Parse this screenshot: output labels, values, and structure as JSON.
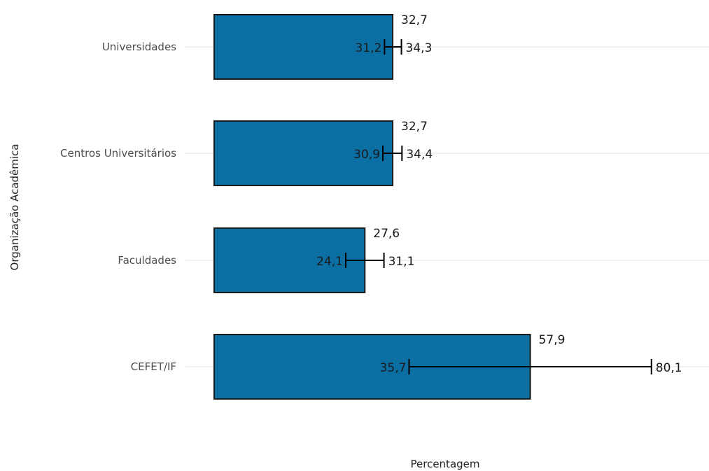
{
  "chart_data": {
    "type": "bar",
    "orientation": "horizontal",
    "xlabel": "Percentagem",
    "ylabel": "Organização Acadêmica",
    "categories": [
      "Universidades",
      "Centros Universitários",
      "Faculdades",
      "CEFET/IF"
    ],
    "values": [
      32.7,
      32.7,
      27.6,
      57.9
    ],
    "value_labels": [
      "32,7",
      "32,7",
      "27,6",
      "57,9"
    ],
    "error_low": [
      31.2,
      30.9,
      24.1,
      35.7
    ],
    "error_low_labels": [
      "31,2",
      "30,9",
      "24,1",
      "35,7"
    ],
    "error_high": [
      34.3,
      34.4,
      31.1,
      80.1
    ],
    "error_high_labels": [
      "34,3",
      "34,4",
      "31,1",
      "80,1"
    ],
    "bar_color": "#0b6fa4",
    "bar_edge_color": "#1a1a1a",
    "grid_color": "#ebebeb",
    "x_ticks_shown": false,
    "grid": true
  }
}
